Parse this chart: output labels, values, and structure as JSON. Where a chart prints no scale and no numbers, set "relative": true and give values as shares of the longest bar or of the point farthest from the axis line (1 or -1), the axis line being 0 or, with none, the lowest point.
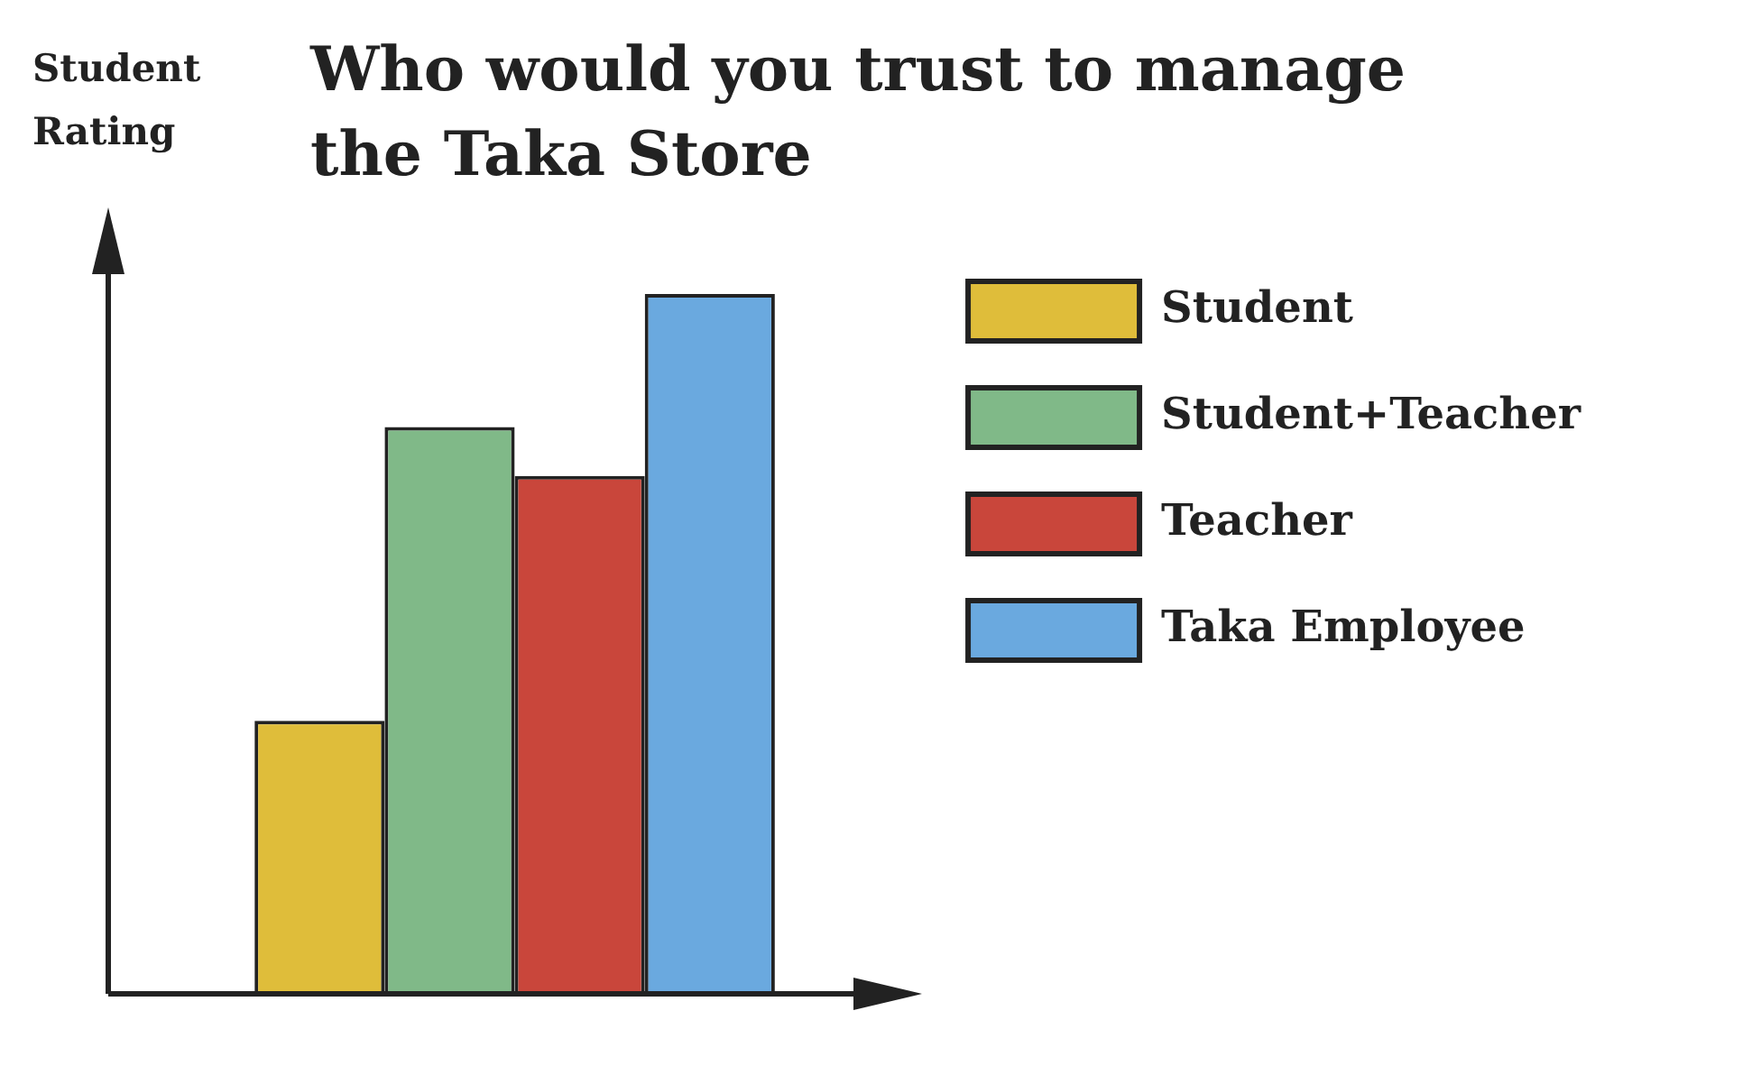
{
  "chart_data": {
    "type": "bar",
    "title": "Who would you trust to manage the Taka Store",
    "ylabel": "Student Rating",
    "relative": true,
    "legend": "right",
    "categories": [
      null
    ],
    "series": [
      {
        "name": "Student",
        "color": "#dfbd3a",
        "values": [
          0.39
        ]
      },
      {
        "name": "Student+Teacher",
        "color": "#80b988",
        "values": [
          0.81
        ]
      },
      {
        "name": "Teacher",
        "color": "#c9463b",
        "values": [
          0.74
        ]
      },
      {
        "name": "Taka Employee",
        "color": "#6aa9df",
        "values": [
          1
        ]
      }
    ]
  }
}
